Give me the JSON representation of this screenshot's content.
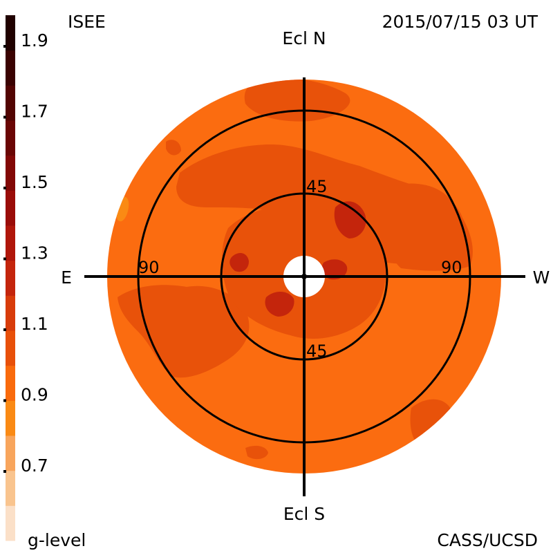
{
  "header": {
    "left_label": "ISEE",
    "timestamp": "2015/07/15 03 UT"
  },
  "footer": {
    "scale_label": "g-level",
    "credit": "CASS/UCSD"
  },
  "compass": {
    "north": "Ecl N",
    "south": "Ecl S",
    "east": "E",
    "west": "W"
  },
  "rings": {
    "inner_north_label": "45",
    "inner_south_label": "45",
    "outer_east_label": "90",
    "outer_west_label": "90"
  },
  "colorbar": {
    "tick_labels": [
      "1.9",
      "1.7",
      "1.5",
      "1.3",
      "1.1",
      "0.9",
      "0.7"
    ],
    "bands": [
      {
        "color": "#fbe0c8"
      },
      {
        "color": "#f9c48e"
      },
      {
        "color": "#f8a55c"
      },
      {
        "color": "#fa8a14"
      },
      {
        "color": "#f96a0c"
      },
      {
        "color": "#e85009"
      },
      {
        "color": "#d83c0a"
      },
      {
        "color": "#c4250c"
      },
      {
        "color": "#b0160a"
      },
      {
        "color": "#9a0c08"
      },
      {
        "color": "#820806"
      },
      {
        "color": "#6a0604"
      },
      {
        "color": "#520402"
      },
      {
        "color": "#3a0201"
      },
      {
        "color": "#200100"
      }
    ]
  },
  "map_colors": {
    "base": "#fb6c10",
    "mid": "#e8520a",
    "high": "#c4250c",
    "low": "#fa8a14"
  }
}
